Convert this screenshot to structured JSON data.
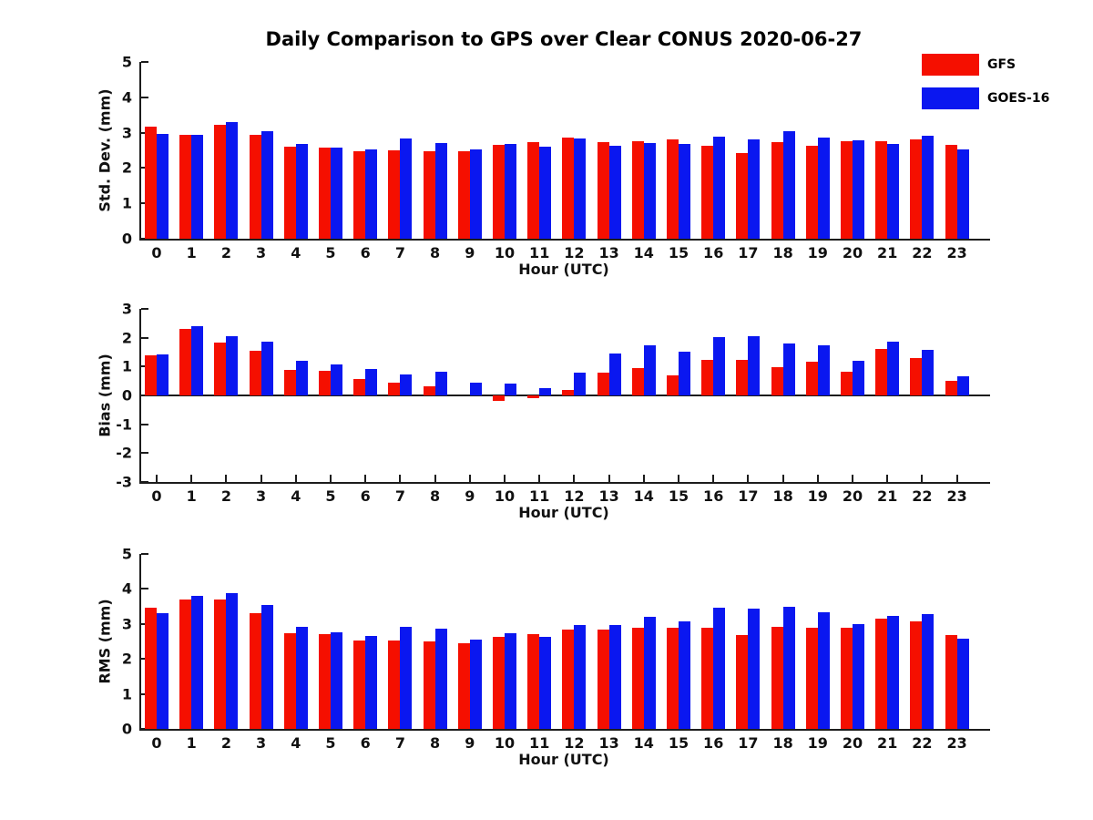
{
  "title": "Daily Comparison to GPS over Clear CONUS 2020-06-27",
  "legend": {
    "position": "top-right",
    "items": [
      {
        "label": "GFS",
        "color": "#f50f00"
      },
      {
        "label": "GOES-16",
        "color": "#0a17f0"
      }
    ]
  },
  "chart_data": [
    {
      "type": "bar",
      "ylabel": "Std. Dev. (mm)",
      "xlabel": "Hour (UTC)",
      "ylim": [
        0,
        5
      ],
      "yticks": [
        0,
        1,
        2,
        3,
        4,
        5
      ],
      "grid": false,
      "categories": [
        0,
        1,
        2,
        3,
        4,
        5,
        6,
        7,
        8,
        9,
        10,
        11,
        12,
        13,
        14,
        15,
        16,
        17,
        18,
        19,
        20,
        21,
        22,
        23
      ],
      "series": [
        {
          "name": "GFS",
          "values": [
            3.17,
            2.93,
            3.22,
            2.93,
            2.61,
            2.58,
            2.47,
            2.5,
            2.48,
            2.47,
            2.65,
            2.72,
            2.85,
            2.72,
            2.76,
            2.8,
            2.64,
            2.42,
            2.74,
            2.64,
            2.76,
            2.76,
            2.8,
            2.65
          ]
        },
        {
          "name": "GOES-16",
          "values": [
            2.97,
            2.93,
            3.3,
            3.03,
            2.69,
            2.57,
            2.52,
            2.83,
            2.71,
            2.52,
            2.68,
            2.6,
            2.84,
            2.62,
            2.7,
            2.69,
            2.88,
            2.81,
            3.03,
            2.85,
            2.79,
            2.67,
            2.9,
            2.53
          ]
        }
      ]
    },
    {
      "type": "bar",
      "ylabel": "Bias (mm)",
      "xlabel": "Hour (UTC)",
      "ylim": [
        -3,
        3
      ],
      "yticks": [
        -3,
        -2,
        -1,
        0,
        1,
        2,
        3
      ],
      "grid": false,
      "categories": [
        0,
        1,
        2,
        3,
        4,
        5,
        6,
        7,
        8,
        9,
        10,
        11,
        12,
        13,
        14,
        15,
        16,
        17,
        18,
        19,
        20,
        21,
        22,
        23
      ],
      "series": [
        {
          "name": "GFS",
          "values": [
            1.38,
            2.32,
            1.82,
            1.55,
            0.88,
            0.84,
            0.56,
            0.43,
            0.33,
            0.0,
            -0.18,
            -0.08,
            0.2,
            0.79,
            0.95,
            0.71,
            1.23,
            1.22,
            0.98,
            1.16,
            0.83,
            1.6,
            1.3,
            0.49
          ]
        },
        {
          "name": "GOES-16",
          "values": [
            1.42,
            2.4,
            2.05,
            1.85,
            1.2,
            1.08,
            0.92,
            0.74,
            0.82,
            0.45,
            0.42,
            0.26,
            0.8,
            1.44,
            1.74,
            1.52,
            2.03,
            2.04,
            1.8,
            1.73,
            1.2,
            1.85,
            1.57,
            0.66
          ]
        }
      ]
    },
    {
      "type": "bar",
      "ylabel": "RMS (mm)",
      "xlabel": "Hour (UTC)",
      "ylim": [
        0,
        5
      ],
      "yticks": [
        0,
        1,
        2,
        3,
        4,
        5
      ],
      "grid": false,
      "categories": [
        0,
        1,
        2,
        3,
        4,
        5,
        6,
        7,
        8,
        9,
        10,
        11,
        12,
        13,
        14,
        15,
        16,
        17,
        18,
        19,
        20,
        21,
        22,
        23
      ],
      "series": [
        {
          "name": "GFS",
          "values": [
            3.47,
            3.71,
            3.69,
            3.3,
            2.74,
            2.72,
            2.53,
            2.53,
            2.5,
            2.46,
            2.63,
            2.72,
            2.85,
            2.85,
            2.9,
            2.89,
            2.89,
            2.68,
            2.91,
            2.9,
            2.88,
            3.16,
            3.08,
            2.67
          ]
        },
        {
          "name": "GOES-16",
          "values": [
            3.31,
            3.79,
            3.88,
            3.54,
            2.91,
            2.76,
            2.66,
            2.91,
            2.87,
            2.56,
            2.74,
            2.62,
            2.96,
            2.98,
            3.21,
            3.07,
            3.47,
            3.45,
            3.5,
            3.33,
            3.0,
            3.24,
            3.27,
            2.59
          ]
        }
      ]
    }
  ]
}
